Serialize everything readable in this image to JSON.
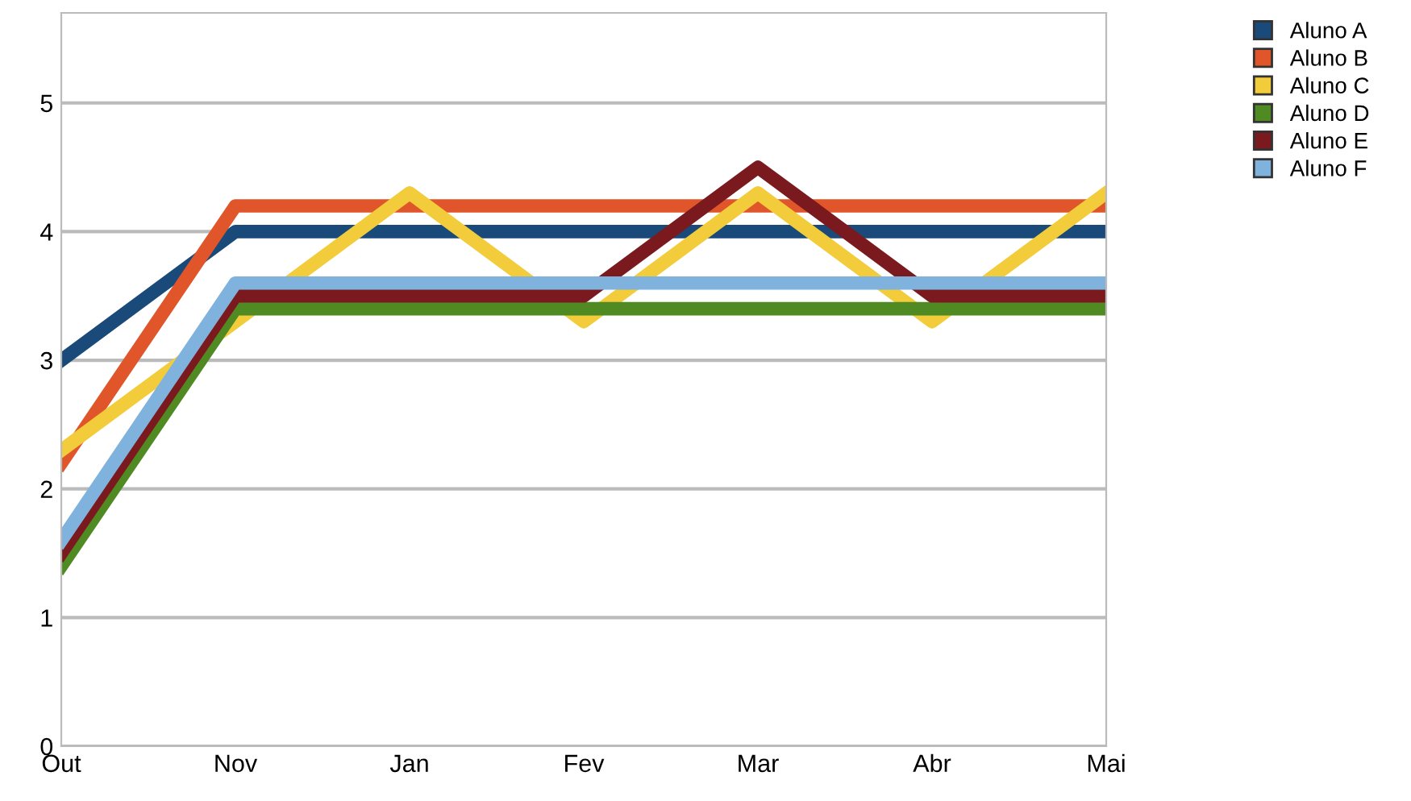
{
  "chart_data": {
    "type": "line",
    "categories": [
      "Out",
      "Nov",
      "Jan",
      "Fev",
      "Mar",
      "Abr",
      "Mai"
    ],
    "series": [
      {
        "name": "Aluno A",
        "color": "#1a4a7a",
        "values": [
          3.0,
          4.0,
          4.0,
          4.0,
          4.0,
          4.0,
          4.0
        ]
      },
      {
        "name": "Aluno B",
        "color": "#e0562a",
        "values": [
          2.2,
          4.2,
          4.2,
          4.2,
          4.2,
          4.2,
          4.2
        ]
      },
      {
        "name": "Aluno C",
        "color": "#f2cc3a",
        "values": [
          2.3,
          3.3,
          4.3,
          3.3,
          4.3,
          3.3,
          4.3
        ]
      },
      {
        "name": "Aluno D",
        "color": "#4f8a22",
        "values": [
          1.4,
          3.4,
          3.4,
          3.4,
          3.4,
          3.4,
          3.4
        ]
      },
      {
        "name": "Aluno E",
        "color": "#7a1a1e",
        "values": [
          1.5,
          3.5,
          3.5,
          3.5,
          4.5,
          3.5,
          3.5
        ]
      },
      {
        "name": "Aluno F",
        "color": "#7fb2dc",
        "values": [
          1.6,
          3.6,
          3.6,
          3.6,
          3.6,
          3.6,
          3.6
        ]
      }
    ],
    "ylim": [
      0,
      5.7
    ],
    "yticks": [
      0,
      1,
      2,
      3,
      4,
      5
    ],
    "grid": "y",
    "legend": "top right",
    "marker": "none",
    "line_style": "solid"
  }
}
